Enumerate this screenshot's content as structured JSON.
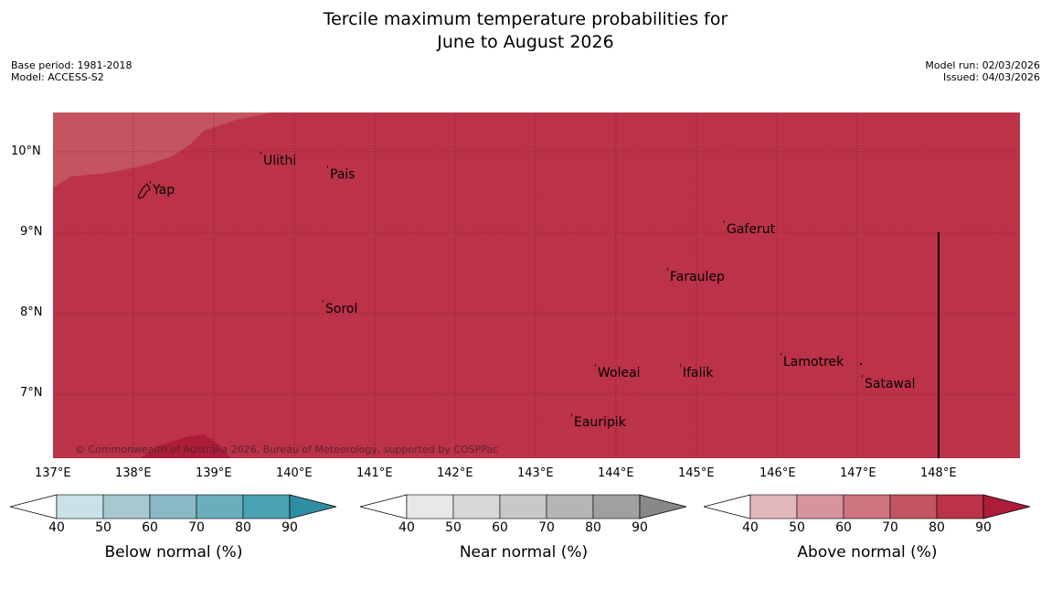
{
  "title": {
    "line1": "Tercile maximum temperature probabilities for",
    "line2": "June to August 2026"
  },
  "meta": {
    "base_period": "Base period: 1981-2018",
    "model": "Model: ACCESS-S2",
    "model_run": "Model run: 02/03/2026",
    "issued": "Issued: 04/03/2026"
  },
  "map": {
    "copyright": "© Commonwealth of Australia 2026, Bureau of Meteorology, supported by COSPPac",
    "places": [
      "Ulithi",
      "Pais",
      "Yap",
      "Gaferut",
      "Faraulep",
      "Sorol",
      "Lamotrek",
      "Woleai",
      "Ifalik",
      "Satawal",
      "Eauripik"
    ],
    "lon_labels": [
      "137°E",
      "138°E",
      "139°E",
      "140°E",
      "141°E",
      "142°E",
      "143°E",
      "144°E",
      "145°E",
      "146°E",
      "147°E",
      "148°E"
    ],
    "lat_labels": [
      "10°N",
      "9°N",
      "8°N",
      "7°N"
    ]
  },
  "legend": {
    "below": {
      "title": "Below normal (%)",
      "colors": [
        "#c9e2e8",
        "#a8c8d0",
        "#8ab8c5",
        "#6aaebc",
        "#4aa1b1",
        "#2e8fa3"
      ]
    },
    "near": {
      "title": "Near normal (%)",
      "colors": [
        "#e8e8e8",
        "#d8d8d8",
        "#c8c8c8",
        "#b5b5b5",
        "#a0a0a0",
        "#888888"
      ]
    },
    "above": {
      "title": "Above normal (%)",
      "colors": [
        "#e2b8bd",
        "#d8949c",
        "#cd767f",
        "#c4545f",
        "#bc3249",
        "#ad1c39"
      ]
    },
    "ticks": [
      "40",
      "50",
      "60",
      "70",
      "80",
      "90"
    ]
  }
}
